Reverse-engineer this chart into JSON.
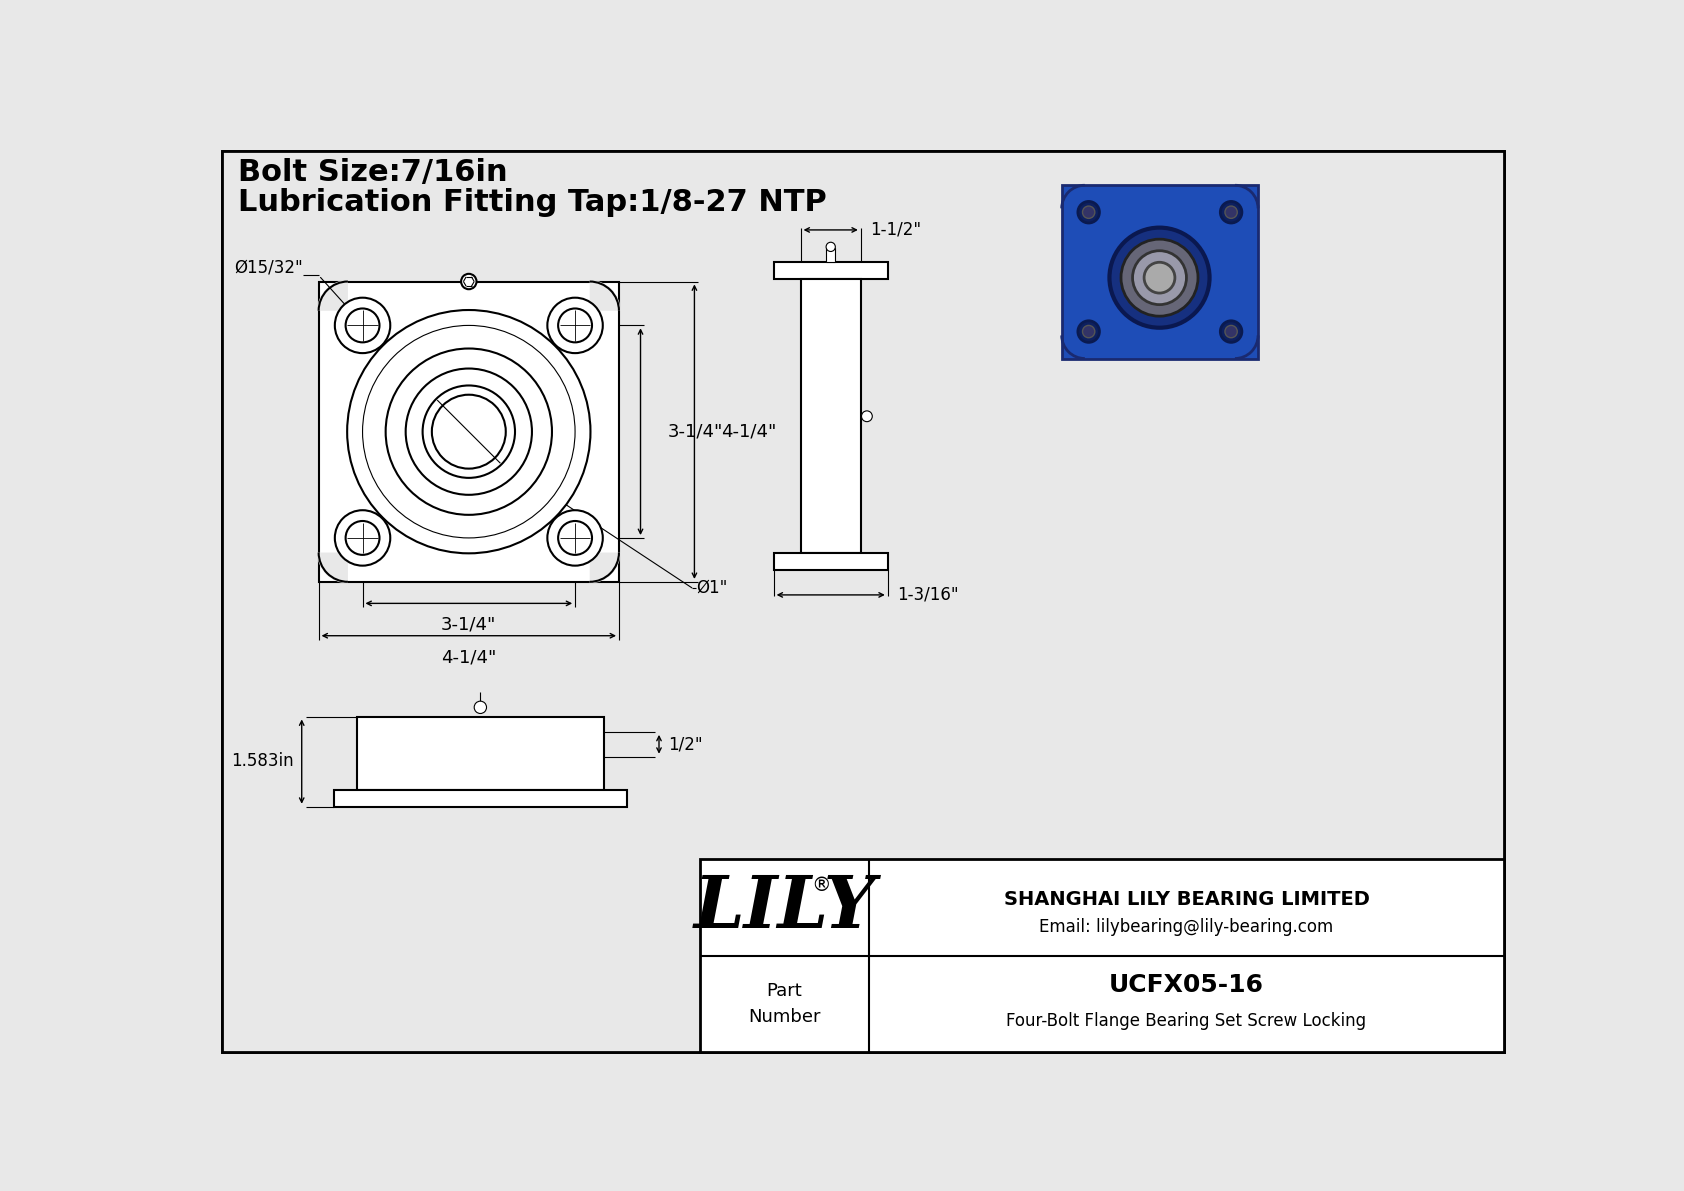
{
  "title_line1": "Bolt Size:7/16in",
  "title_line2": "Lubrication Fitting Tap:1/8-27 NTP",
  "part_number": "UCFX05-16",
  "part_desc": "Four-Bolt Flange Bearing Set Screw Locking",
  "company": "SHANGHAI LILY BEARING LIMITED",
  "email": "Email: lilybearing@lily-bearing.com",
  "logo": "LILY",
  "logo_sup": "®",
  "dim_bolt_hole": "Ø15/32\"",
  "dim_shaft": "Ø1\"",
  "dim_h1": "3-1/4\"",
  "dim_h2": "4-1/4\"",
  "dim_w1": "3-1/4\"",
  "dim_w2": "4-1/4\"",
  "dim_side_top": "1-1/2\"",
  "dim_side_bot": "1-3/16\"",
  "dim_front_h": "1.583in",
  "dim_front_slot": "1/2\"",
  "bg_color": "#e8e8e8",
  "line_color": "#000000",
  "border_color": "#000000",
  "white": "#ffffff"
}
